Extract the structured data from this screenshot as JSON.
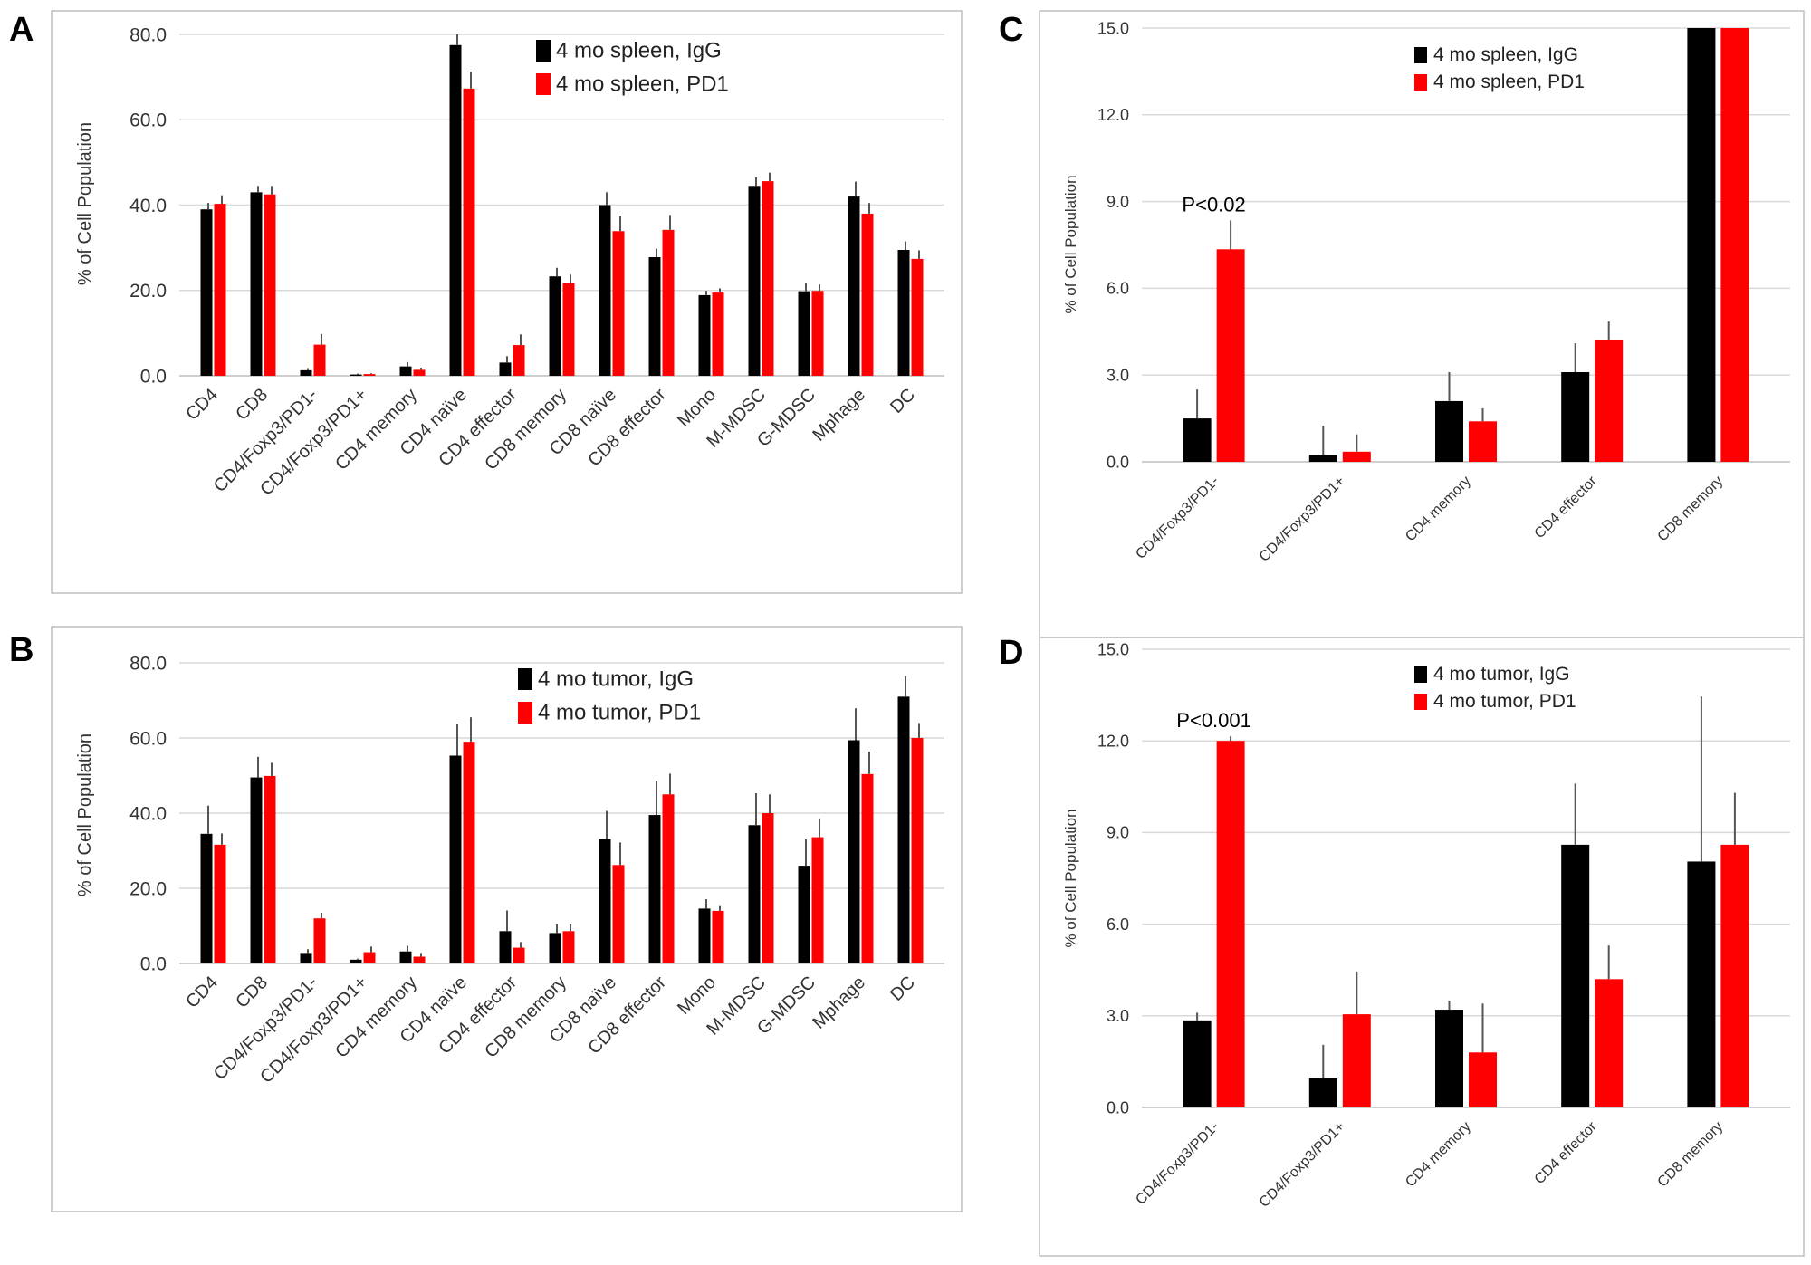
{
  "colors": {
    "series1": "#000000",
    "series2": "#ff0000",
    "grid": "#d9d9d9",
    "frame": "#bfbfbf",
    "axis": "#bfbfbf",
    "errorbar": "#555555"
  },
  "chart_data": [
    {
      "id": "A",
      "panel_label": "A",
      "type": "bar",
      "title": "",
      "xlabel": "",
      "ylabel": "% of Cell Population",
      "ylim": [
        0,
        80
      ],
      "yticks": [
        "0.0",
        "20.0",
        "40.0",
        "60.0",
        "80.0"
      ],
      "grid": true,
      "legend": "top-right",
      "categories": [
        "CD4",
        "CD8",
        "CD4/Foxp3/PD1-",
        "CD4/Foxp3/PD1+",
        "CD4 memory",
        "CD4 naïve",
        "CD4 effector",
        "CD8 memory",
        "CD8 naïve",
        "CD8 effector",
        "Mono",
        "M-MDSC",
        "G-MDSC",
        "Mphage",
        "DC"
      ],
      "series": [
        {
          "name": "4 mo spleen, IgG",
          "values": [
            39.0,
            43.0,
            1.3,
            0.3,
            2.2,
            77.5,
            3.1,
            23.3,
            40.0,
            27.8,
            18.9,
            44.5,
            19.8,
            42.0,
            29.5
          ],
          "errors": [
            1.5,
            1.5,
            0.5,
            0.2,
            1.0,
            2.5,
            1.5,
            2.0,
            3.0,
            2.0,
            1.0,
            2.0,
            2.0,
            3.5,
            2.0
          ]
        },
        {
          "name": "4 mo spleen, PD1",
          "values": [
            40.3,
            42.5,
            7.3,
            0.4,
            1.4,
            67.3,
            7.2,
            21.7,
            33.9,
            34.2,
            19.5,
            45.6,
            19.9,
            38.0,
            27.4
          ],
          "errors": [
            2.0,
            2.0,
            2.5,
            0.2,
            0.5,
            4.0,
            2.5,
            2.0,
            3.5,
            3.5,
            1.0,
            2.0,
            1.5,
            2.5,
            2.0
          ]
        }
      ],
      "annotations": []
    },
    {
      "id": "B",
      "panel_label": "B",
      "type": "bar",
      "title": "",
      "xlabel": "",
      "ylabel": "% of Cell Population",
      "ylim": [
        0,
        80
      ],
      "yticks": [
        "0.0",
        "20.0",
        "40.0",
        "60.0",
        "80.0"
      ],
      "grid": true,
      "legend": "top-right",
      "categories": [
        "CD4",
        "CD8",
        "CD4/Foxp3/PD1-",
        "CD4/Foxp3/PD1+",
        "CD4 memory",
        "CD4 naïve",
        "CD4 effector",
        "CD8 memory",
        "CD8 naïve",
        "CD8 effector",
        "Mono",
        "M-MDSC",
        "G-MDSC",
        "Mphage",
        "DC"
      ],
      "series": [
        {
          "name": "4 mo tumor, IgG",
          "values": [
            34.5,
            49.5,
            2.8,
            1.0,
            3.2,
            55.3,
            8.6,
            8.1,
            33.1,
            39.5,
            14.6,
            36.8,
            26.0,
            59.4,
            71.0
          ],
          "errors": [
            7.5,
            5.5,
            1.0,
            0.3,
            1.5,
            8.5,
            5.5,
            2.5,
            7.5,
            9.0,
            2.5,
            8.5,
            7.0,
            8.5,
            5.5
          ]
        },
        {
          "name": "4 mo tumor, PD1",
          "values": [
            31.6,
            49.9,
            12.0,
            3.0,
            1.8,
            59.0,
            4.2,
            8.6,
            26.2,
            45.0,
            14.0,
            40.0,
            33.6,
            50.4,
            60.0
          ],
          "errors": [
            3.0,
            3.5,
            1.5,
            1.5,
            1.0,
            6.5,
            1.5,
            2.0,
            6.0,
            5.5,
            1.5,
            5.0,
            5.0,
            6.0,
            4.0
          ]
        }
      ],
      "annotations": []
    },
    {
      "id": "C",
      "panel_label": "C",
      "type": "bar",
      "title": "",
      "xlabel": "",
      "ylabel": "% of Cell Population",
      "ylim": [
        0,
        15
      ],
      "yticks": [
        "0.0",
        "3.0",
        "6.0",
        "9.0",
        "12.0",
        "15.0"
      ],
      "grid": true,
      "legend": "top-left",
      "categories": [
        "CD4/Foxp3/PD1-",
        "CD4/Foxp3/PD1+",
        "CD4 memory",
        "CD4 effector",
        "CD8 memory"
      ],
      "series": [
        {
          "name": "4 mo spleen, IgG",
          "values": [
            1.5,
            0.25,
            2.1,
            3.1,
            15.0
          ],
          "errors": [
            1.0,
            1.0,
            1.0,
            1.0,
            0
          ]
        },
        {
          "name": "4 mo spleen, PD1",
          "values": [
            7.35,
            0.35,
            1.4,
            4.2,
            15.0
          ],
          "errors": [
            1.0,
            0.6,
            0.45,
            0.65,
            0
          ]
        }
      ],
      "annotations": [
        {
          "category": 0,
          "text": "P<0.02"
        }
      ]
    },
    {
      "id": "D",
      "panel_label": "D",
      "type": "bar",
      "title": "",
      "xlabel": "",
      "ylabel": "% of Cell Population",
      "ylim": [
        0,
        15
      ],
      "yticks": [
        "0.0",
        "3.0",
        "6.0",
        "9.0",
        "12.0",
        "15.0"
      ],
      "grid": true,
      "legend": "top-left",
      "categories": [
        "CD4/Foxp3/PD1-",
        "CD4/Foxp3/PD1+",
        "CD4 memory",
        "CD4 effector",
        "CD8 memory"
      ],
      "series": [
        {
          "name": "4 mo tumor, IgG",
          "values": [
            2.85,
            0.95,
            3.2,
            8.6,
            8.05
          ],
          "errors": [
            0.25,
            1.1,
            0.3,
            2.0,
            5.4
          ]
        },
        {
          "name": "4 mo tumor, PD1",
          "values": [
            12.0,
            3.05,
            1.8,
            4.2,
            8.6
          ],
          "errors": [
            0.15,
            1.4,
            1.6,
            1.1,
            1.7
          ]
        }
      ],
      "annotations": [
        {
          "category": 0,
          "text": "P<0.001"
        }
      ]
    }
  ]
}
